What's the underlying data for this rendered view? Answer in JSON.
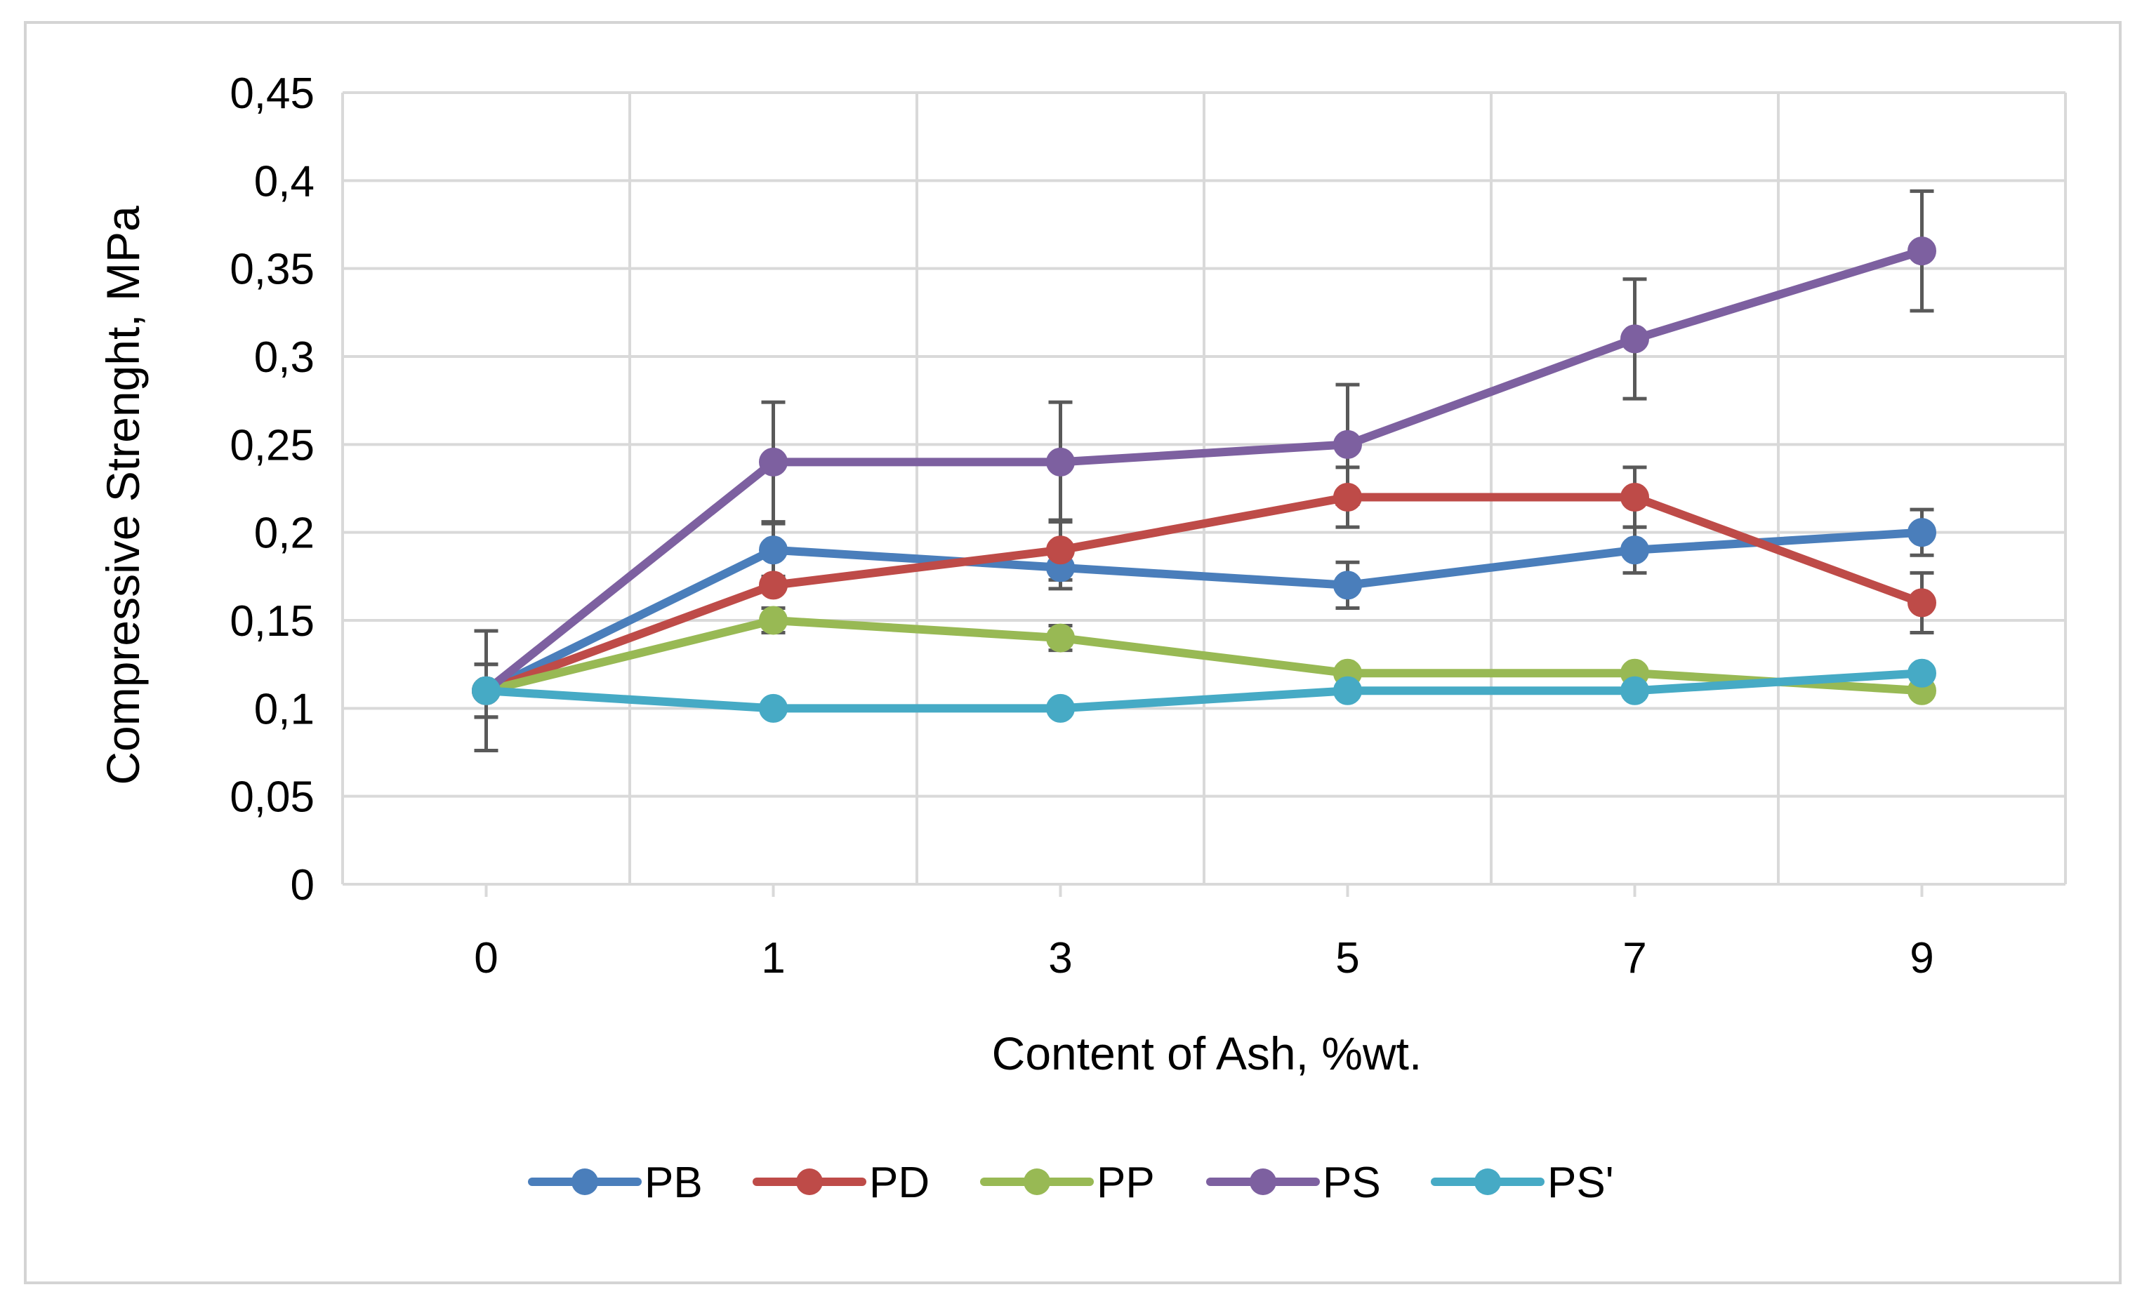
{
  "chart_data": {
    "type": "line",
    "title": "",
    "xlabel": "Content of Ash, %wt.",
    "ylabel": "Compressive Strenght, MPa",
    "categories": [
      "0",
      "1",
      "3",
      "5",
      "7",
      "9"
    ],
    "ylim": [
      0,
      0.45
    ],
    "yticks": [
      0,
      0.05,
      0.1,
      0.15,
      0.2,
      0.25,
      0.3,
      0.35,
      0.4,
      0.45
    ],
    "ytick_labels": [
      "0",
      "0,05",
      "0,1",
      "0,15",
      "0,2",
      "0,25",
      "0,3",
      "0,35",
      "0,4",
      "0,45"
    ],
    "grid": true,
    "legend_position": "bottom",
    "series": [
      {
        "name": "PB",
        "color": "#4a7ebb",
        "values": [
          0.11,
          0.19,
          0.18,
          0.17,
          0.19,
          0.2
        ],
        "errors": [
          0.015,
          0.015,
          0.012,
          0.013,
          0.013,
          0.013
        ]
      },
      {
        "name": "PD",
        "color": "#be4b48",
        "values": [
          0.11,
          0.17,
          0.19,
          0.22,
          0.22,
          0.16
        ],
        "errors": [
          0.015,
          0.0,
          0.017,
          0.017,
          0.017,
          0.017
        ]
      },
      {
        "name": "PP",
        "color": "#98b954",
        "values": [
          0.11,
          0.15,
          0.14,
          0.12,
          0.12,
          0.11
        ],
        "errors": [
          0.015,
          0.007,
          0.007,
          0.0,
          0.0,
          0.0
        ]
      },
      {
        "name": "PS",
        "color": "#7d60a0",
        "values": [
          0.11,
          0.24,
          0.24,
          0.25,
          0.31,
          0.36
        ],
        "errors": [
          0.034,
          0.034,
          0.034,
          0.034,
          0.034,
          0.034
        ]
      },
      {
        "name": "PS'",
        "color": "#46aac5",
        "values": [
          0.11,
          0.1,
          0.1,
          0.11,
          0.11,
          0.12
        ],
        "errors": [
          0.0,
          0.0,
          0.0,
          0.0,
          0.0,
          0.0
        ]
      }
    ]
  }
}
